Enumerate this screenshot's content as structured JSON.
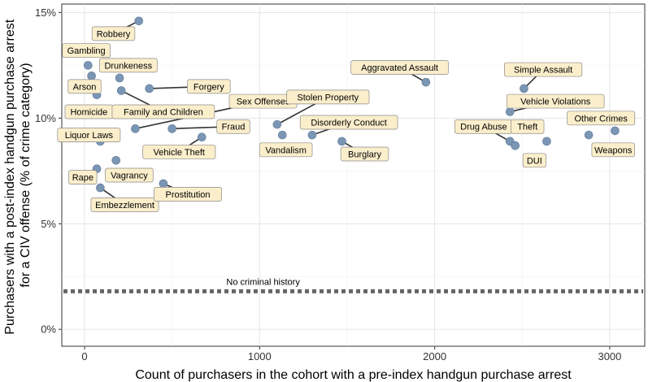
{
  "chart_data": {
    "type": "scatter",
    "title": "",
    "xlabel": "Count of purchasers in the cohort with a pre-index handgun purchase arrest",
    "ylabel_lines": [
      "Purchasers with a post-index handgun purchase arrest",
      "for a CIV offense (% of crime category)"
    ],
    "xlim": [
      -130,
      3200
    ],
    "ylim": [
      -0.8,
      15.4
    ],
    "xticks": [
      0,
      1000,
      2000,
      3000
    ],
    "xtick_labels": [
      "0",
      "1000",
      "2000",
      "3000"
    ],
    "yticks": [
      0,
      5,
      10,
      15
    ],
    "ytick_labels": [
      "0%",
      "5%",
      "10%",
      "15%"
    ],
    "grid": true,
    "point_color": "#7b96b5",
    "reference_line": {
      "y": 1.8,
      "label": "No criminal history",
      "color": "#666666"
    },
    "points": [
      {
        "label": "Robbery",
        "x": 310,
        "y": 14.6,
        "lx": 165,
        "ly": 14.0
      },
      {
        "label": "Gambling",
        "x": 20,
        "y": 12.5,
        "lx": 10,
        "ly": 13.2
      },
      {
        "label": "Drunkeness",
        "x": 200,
        "y": 11.9,
        "lx": 250,
        "ly": 12.5
      },
      {
        "label": "Arson",
        "x": 40,
        "y": 12.0,
        "lx": 0,
        "ly": 11.5
      },
      {
        "label": "Forgery",
        "x": 370,
        "y": 11.4,
        "lx": 710,
        "ly": 11.5
      },
      {
        "label": "Homicide",
        "x": 70,
        "y": 11.1,
        "lx": 25,
        "ly": 10.3
      },
      {
        "label": "Family and Children",
        "x": 210,
        "y": 11.3,
        "lx": 450,
        "ly": 10.3
      },
      {
        "label": "Sex Offenses",
        "x": 290,
        "y": 9.5,
        "lx": 1020,
        "ly": 10.8
      },
      {
        "label": "Fraud",
        "x": 500,
        "y": 9.5,
        "lx": 850,
        "ly": 9.6
      },
      {
        "label": "Liquor Laws",
        "x": 90,
        "y": 8.9,
        "lx": 25,
        "ly": 9.2
      },
      {
        "label": "Vehicle Theft",
        "x": 670,
        "y": 9.1,
        "lx": 540,
        "ly": 8.4
      },
      {
        "label": "Stolen Property",
        "x": 1100,
        "y": 9.7,
        "lx": 1390,
        "ly": 11.0
      },
      {
        "label": "Disorderly Conduct",
        "x": 1300,
        "y": 9.2,
        "lx": 1510,
        "ly": 9.8
      },
      {
        "label": "Vandalism",
        "x": 1130,
        "y": 9.2,
        "lx": 1150,
        "ly": 8.5
      },
      {
        "label": "Burglary",
        "x": 1470,
        "y": 8.9,
        "lx": 1600,
        "ly": 8.3
      },
      {
        "label": "Aggravated Assault",
        "x": 1950,
        "y": 11.7,
        "lx": 1800,
        "ly": 12.4
      },
      {
        "label": "Rape",
        "x": 70,
        "y": 7.6,
        "lx": -10,
        "ly": 7.2
      },
      {
        "label": "Vagrancy",
        "x": 180,
        "y": 8.0,
        "lx": 255,
        "ly": 7.3
      },
      {
        "label": "Embezzlement",
        "x": 90,
        "y": 6.7,
        "lx": 230,
        "ly": 5.9
      },
      {
        "label": "Prostitution",
        "x": 450,
        "y": 6.9,
        "lx": 590,
        "ly": 6.4
      },
      {
        "label": "Simple Assault",
        "x": 2510,
        "y": 11.4,
        "lx": 2620,
        "ly": 12.3
      },
      {
        "label": "Vehicle Violations",
        "x": 2430,
        "y": 10.3,
        "lx": 2690,
        "ly": 10.8
      },
      {
        "label": "Drug Abuse",
        "x": 2430,
        "y": 8.9,
        "lx": 2280,
        "ly": 9.6
      },
      {
        "label": "Theft",
        "x": 2460,
        "y": 8.7,
        "lx": 2530,
        "ly": 9.6
      },
      {
        "label": "DUI",
        "x": 2460,
        "y": 8.7,
        "lx": 2570,
        "ly": 8.0
      },
      {
        "label": "Other Crimes",
        "x": 2880,
        "y": 9.2,
        "lx": 2950,
        "ly": 10.0
      },
      {
        "label": "Weapons",
        "x": 3030,
        "y": 9.4,
        "lx": 3020,
        "ly": 8.5
      },
      {
        "label": "",
        "x": 2640,
        "y": 8.9
      }
    ]
  }
}
